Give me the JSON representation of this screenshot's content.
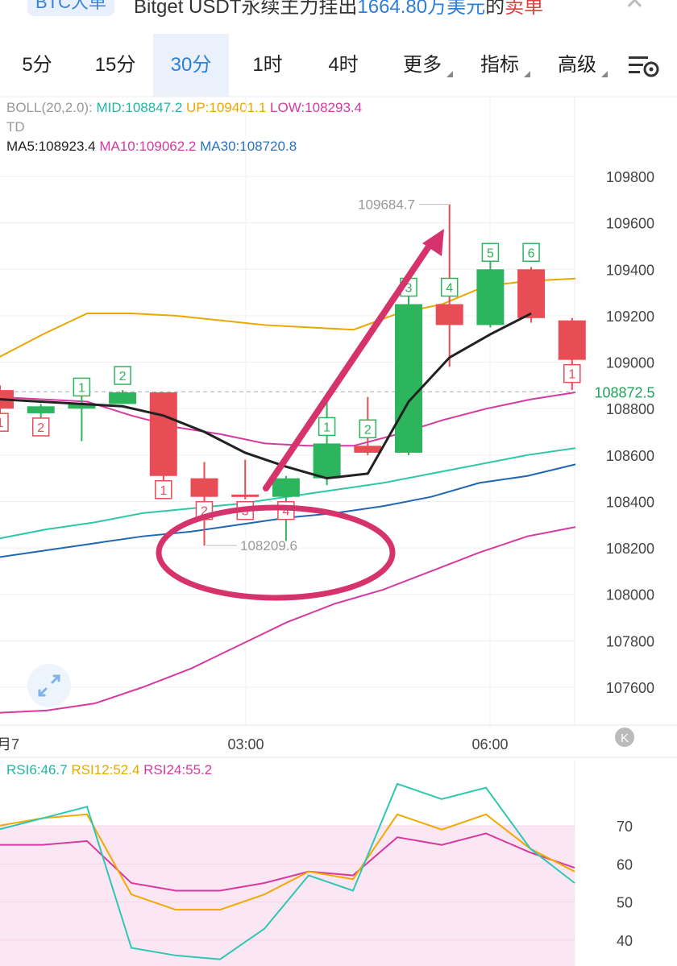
{
  "banner": {
    "pill": "BTC大单",
    "text_a": "Bitget USDT永续主力挂出",
    "text_b": "1664.80万美元",
    "text_c": "的",
    "text_d": "卖单",
    "close": "✕"
  },
  "tabs": [
    {
      "label": "5分"
    },
    {
      "label": "15分"
    },
    {
      "label": "30分",
      "active": true
    },
    {
      "label": "1时"
    },
    {
      "label": "4时"
    },
    {
      "label": "更多"
    },
    {
      "label": "指标"
    },
    {
      "label": "高级"
    }
  ],
  "indicators": {
    "boll_label": "BOLL(20,2.0):",
    "boll_mid": "MID:108847.2",
    "boll_up": "UP:109401.1",
    "boll_low": "LOW:108293.4",
    "td": "TD",
    "ma5": "MA5:108923.4",
    "ma10": "MA10:109062.2",
    "ma30": "MA30:108720.8",
    "rsi6": "RSI6:46.7",
    "rsi12": "RSI12:52.4",
    "rsi24": "RSI24:55.2"
  },
  "chart": {
    "y_ticks": [
      "109800",
      "109600",
      "109400",
      "109200",
      "109000",
      "108800",
      "108600",
      "108400",
      "108200",
      "108000",
      "107800",
      "107600"
    ],
    "current_price": "108872.5",
    "high_label": "109684.7",
    "low_label": "108209.6",
    "time_labels": [
      "月7",
      "03:00",
      "06:00"
    ],
    "rsi_ticks": [
      "70",
      "60",
      "50",
      "40"
    ]
  },
  "chart_data": {
    "type": "candlestick",
    "price_range": [
      107500,
      109900
    ],
    "candles": [
      {
        "o": 108880,
        "c": 108800,
        "h": 108900,
        "l": 108780,
        "td": "1",
        "td_pos": "below"
      },
      {
        "o": 108780,
        "c": 108810,
        "h": 108820,
        "l": 108690,
        "td": "2",
        "td_pos": "below"
      },
      {
        "o": 108800,
        "c": 108820,
        "h": 108860,
        "l": 108660,
        "td": "1",
        "td_pos": "above"
      },
      {
        "o": 108820,
        "c": 108870,
        "h": 108880,
        "l": 108820,
        "td": "2",
        "td_pos": "above"
      },
      {
        "o": 108870,
        "c": 108510,
        "h": 108870,
        "l": 108440,
        "td": "1",
        "td_pos": "below"
      },
      {
        "o": 108500,
        "c": 108420,
        "h": 108570,
        "l": 108210,
        "td": "2",
        "td_pos": "below"
      },
      {
        "o": 108430,
        "c": 108420,
        "h": 108580,
        "l": 108410,
        "td": "3",
        "td_pos": "below"
      },
      {
        "o": 108420,
        "c": 108500,
        "h": 108510,
        "l": 108230,
        "td": "4",
        "td_pos": "below"
      },
      {
        "o": 108500,
        "c": 108650,
        "h": 108860,
        "l": 108470,
        "td": "1",
        "td_pos": "above"
      },
      {
        "o": 108640,
        "c": 108610,
        "h": 108850,
        "l": 108600,
        "td": "2",
        "td_pos": "above"
      },
      {
        "o": 108610,
        "c": 109250,
        "h": 109330,
        "l": 108600,
        "td": "3",
        "td_pos": "above"
      },
      {
        "o": 109250,
        "c": 109160,
        "h": 109680,
        "l": 108980,
        "td": "4",
        "td_pos": "above"
      },
      {
        "o": 109160,
        "c": 109400,
        "h": 109490,
        "l": 109150,
        "td": "5",
        "td_pos": "above"
      },
      {
        "o": 109400,
        "c": 109190,
        "h": 109410,
        "l": 109170,
        "td": "6",
        "td_pos": "above"
      },
      {
        "o": 109180,
        "c": 109010,
        "h": 109190,
        "l": 108880,
        "td": "1",
        "td_pos": "below"
      }
    ],
    "ma5": [
      108840,
      108830,
      108820,
      108810,
      108770,
      108700,
      108610,
      108550,
      108500,
      108520,
      108830,
      109020,
      109120,
      109210
    ],
    "boll_up": [
      109020,
      109120,
      109210,
      109210,
      109200,
      109180,
      109160,
      109150,
      109140,
      109210,
      109250,
      109330,
      109350,
      109360
    ],
    "boll_mid": [
      108850,
      108840,
      108830,
      108770,
      108720,
      108690,
      108650,
      108640,
      108640,
      108690,
      108750,
      108800,
      108840,
      108870
    ],
    "boll_low": [
      107490,
      107500,
      107530,
      107600,
      107680,
      107780,
      107880,
      107960,
      108020,
      108100,
      108180,
      108250,
      108290
    ],
    "ma30": [
      108240,
      108280,
      108310,
      108350,
      108370,
      108390,
      108420,
      108450,
      108480,
      108520,
      108560,
      108600,
      108630
    ],
    "ma60": [
      108160,
      108190,
      108220,
      108250,
      108270,
      108300,
      108330,
      108350,
      108380,
      108420,
      108480,
      108510,
      108560
    ],
    "rsi_range": [
      35,
      83
    ],
    "rsi6": [
      69,
      72,
      75,
      38,
      36,
      35,
      43,
      57,
      53,
      81,
      77,
      80,
      64,
      55
    ],
    "rsi12": [
      70,
      72,
      73,
      52,
      48,
      48,
      52,
      58,
      56,
      73,
      69,
      73,
      64,
      58
    ],
    "rsi24": [
      65,
      65,
      66,
      55,
      53,
      53,
      55,
      58,
      57,
      67,
      65,
      68,
      63,
      59
    ]
  }
}
